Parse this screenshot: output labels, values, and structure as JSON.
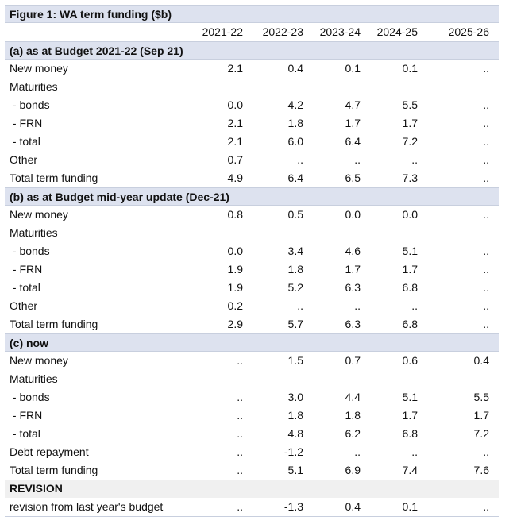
{
  "title": "Figure 1: WA term funding ($b)",
  "columns": [
    "2021-22",
    "2022-23",
    "2023-24",
    "2024-25",
    "2025-26"
  ],
  "sections": [
    {
      "heading": "(a) as at Budget 2021-22 (Sep 21)",
      "rows": [
        {
          "label": "New money",
          "values": [
            "2.1",
            "0.4",
            "0.1",
            "0.1",
            ".."
          ]
        },
        {
          "label": "Maturities",
          "values": [
            "",
            "",
            "",
            "",
            ""
          ]
        },
        {
          "label": " - bonds",
          "values": [
            "0.0",
            "4.2",
            "4.7",
            "5.5",
            ".."
          ]
        },
        {
          "label": " - FRN",
          "values": [
            "2.1",
            "1.8",
            "1.7",
            "1.7",
            ".."
          ]
        },
        {
          "label": " - total",
          "values": [
            "2.1",
            "6.0",
            "6.4",
            "7.2",
            ".."
          ]
        },
        {
          "label": "Other",
          "values": [
            "0.7",
            "..",
            "..",
            "..",
            ".."
          ]
        },
        {
          "label": "Total term funding",
          "values": [
            "4.9",
            "6.4",
            "6.5",
            "7.3",
            ".."
          ]
        }
      ]
    },
    {
      "heading": "(b) as at Budget mid-year update (Dec-21)",
      "rows": [
        {
          "label": "New money",
          "values": [
            "0.8",
            "0.5",
            "0.0",
            "0.0",
            ".."
          ]
        },
        {
          "label": "Maturities",
          "values": [
            "",
            "",
            "",
            "",
            ""
          ]
        },
        {
          "label": " - bonds",
          "values": [
            "0.0",
            "3.4",
            "4.6",
            "5.1",
            ".."
          ]
        },
        {
          "label": " - FRN",
          "values": [
            "1.9",
            "1.8",
            "1.7",
            "1.7",
            ".."
          ]
        },
        {
          "label": " - total",
          "values": [
            "1.9",
            "5.2",
            "6.3",
            "6.8",
            ".."
          ]
        },
        {
          "label": "Other",
          "values": [
            "0.2",
            "..",
            "..",
            "..",
            ".."
          ]
        },
        {
          "label": "Total term funding",
          "values": [
            "2.9",
            "5.7",
            "6.3",
            "6.8",
            ".."
          ]
        }
      ]
    },
    {
      "heading": "(c) now",
      "rows": [
        {
          "label": "New money",
          "values": [
            "..",
            "1.5",
            "0.7",
            "0.6",
            "0.4"
          ]
        },
        {
          "label": "Maturities",
          "values": [
            "",
            "",
            "",
            "",
            ""
          ]
        },
        {
          "label": " - bonds",
          "values": [
            "..",
            "3.0",
            "4.4",
            "5.1",
            "5.5"
          ]
        },
        {
          "label": " - FRN",
          "values": [
            "..",
            "1.8",
            "1.8",
            "1.7",
            "1.7"
          ]
        },
        {
          "label": " - total",
          "values": [
            "..",
            "4.8",
            "6.2",
            "6.8",
            "7.2"
          ]
        },
        {
          "label": "Debt repayment",
          "values": [
            "..",
            "-1.2",
            "..",
            "..",
            ".."
          ]
        },
        {
          "label": "Total term funding",
          "values": [
            "..",
            "5.1",
            "6.9",
            "7.4",
            "7.6"
          ]
        }
      ]
    }
  ],
  "revision": {
    "heading": "REVISION",
    "row": {
      "label": "revision from last year's budget",
      "values": [
        "..",
        "-1.3",
        "0.4",
        "0.1",
        ".."
      ]
    }
  }
}
